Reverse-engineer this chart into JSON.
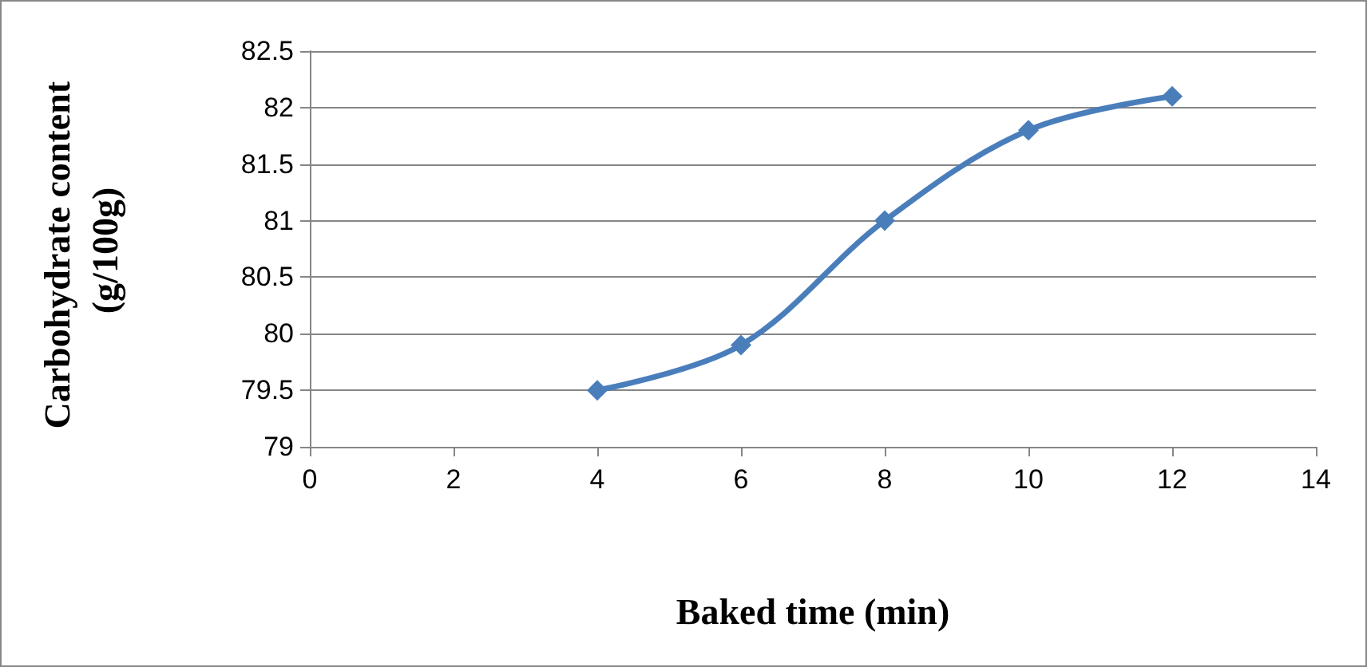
{
  "chart_data": {
    "type": "line",
    "xlabel": "Baked time (min)",
    "ylabel": "Carbohydrate content (g/100g)",
    "x": [
      4,
      6,
      8,
      10,
      12
    ],
    "series": [
      {
        "color": "#4a7ebb",
        "values": [
          79.5,
          79.9,
          81.0,
          81.8,
          82.1
        ]
      }
    ],
    "xlim": [
      0,
      14
    ],
    "xticks": [
      0,
      2,
      4,
      6,
      8,
      10,
      12,
      14
    ],
    "ylim": [
      79,
      82.5
    ],
    "yticks": [
      79,
      79.5,
      80,
      80.5,
      81,
      81.5,
      82,
      82.5
    ],
    "grid": "y",
    "marker": "diamond",
    "line_style": "solid"
  }
}
